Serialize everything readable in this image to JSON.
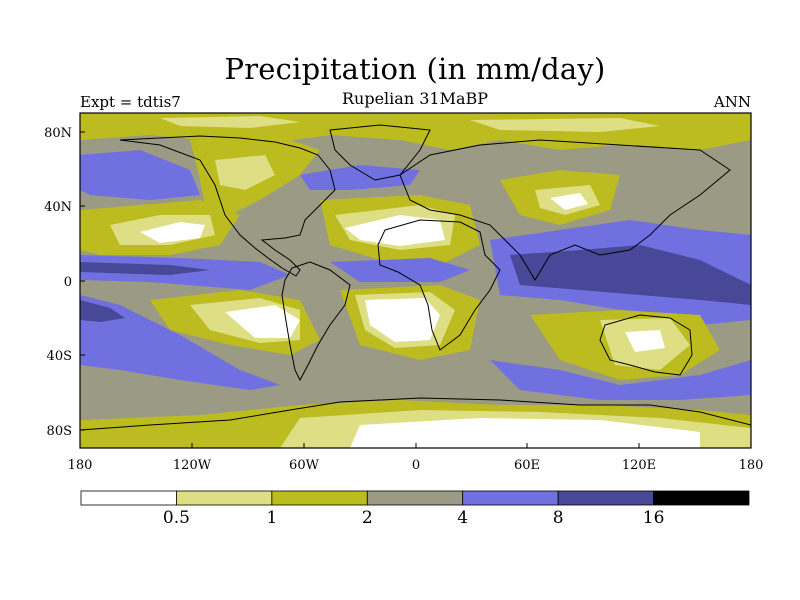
{
  "title": "Precipitation (in mm/day)",
  "subtitle": "Rupelian  31MaBP",
  "experiment_label": "Expt = tdtis7",
  "season_label": "ANN",
  "map": {
    "lon_range": [
      -180,
      180
    ],
    "lat_range": [
      -90,
      90
    ],
    "lon_ticks": [
      "180",
      "120W",
      "60W",
      "0",
      "60E",
      "120E",
      "180"
    ],
    "lat_ticks": [
      "80N",
      "40N",
      "0",
      "40S",
      "80S"
    ],
    "background_class_color": "#9a9a85"
  },
  "colorbar": {
    "colors": [
      "#ffffff",
      "#dede84",
      "#bcbc20",
      "#9a9a85",
      "#7070e0",
      "#484898",
      "#000000"
    ],
    "labels": [
      "0.5",
      "1",
      "2",
      "4",
      "8",
      "16"
    ]
  }
}
